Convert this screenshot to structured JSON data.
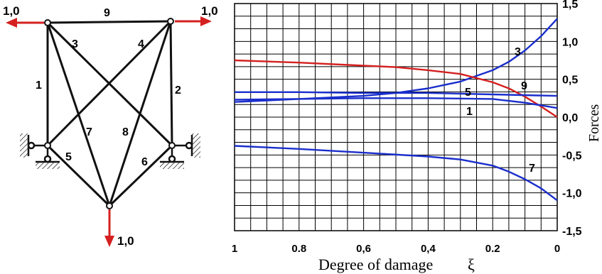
{
  "truss": {
    "load_labels": {
      "left": "1,0",
      "right": "1,0",
      "bottom": "1,0"
    },
    "member_labels": {
      "m1": "1",
      "m2": "2",
      "m3": "3",
      "m4": "4",
      "m5": "5",
      "m6": "6",
      "m7": "7",
      "m8": "8",
      "m9": "9"
    },
    "colors": {
      "load": "#d42020",
      "member": "#111111"
    }
  },
  "chart_data": {
    "type": "line",
    "xlabel": "Degree of damage",
    "xsymbol": "ξ",
    "ylabel": "Forces",
    "xlim": [
      1,
      0
    ],
    "ylim": [
      -1.5,
      1.5
    ],
    "x_ticks": [
      "1",
      "0.8",
      "0,6",
      "0,4",
      "0.2",
      "0"
    ],
    "y_ticks": [
      "1,5",
      "1,0",
      "0,5",
      "0,0",
      "-0,5",
      "-1,0",
      "-1,5"
    ],
    "grid": true,
    "series": [
      {
        "name": "3",
        "color": "#1a2ecc",
        "x": [
          1,
          0.8,
          0.6,
          0.5,
          0.4,
          0.3,
          0.2,
          0.15,
          0.1,
          0.05,
          0
        ],
        "y": [
          0.2,
          0.24,
          0.28,
          0.32,
          0.38,
          0.47,
          0.62,
          0.73,
          0.88,
          1.07,
          1.3
        ]
      },
      {
        "name": "9",
        "color": "#d42020",
        "x": [
          1,
          0.8,
          0.6,
          0.5,
          0.4,
          0.3,
          0.2,
          0.15,
          0.1,
          0.05,
          0
        ],
        "y": [
          0.75,
          0.72,
          0.68,
          0.66,
          0.62,
          0.57,
          0.46,
          0.38,
          0.27,
          0.14,
          0.0
        ]
      },
      {
        "name": "5",
        "color": "#1a2ecc",
        "x": [
          1,
          0.8,
          0.6,
          0.4,
          0.2,
          0
        ],
        "y": [
          0.33,
          0.33,
          0.32,
          0.32,
          0.3,
          0.28
        ]
      },
      {
        "name": "1",
        "color": "#1a2ecc",
        "x": [
          1,
          0.8,
          0.6,
          0.4,
          0.2,
          0.1,
          0
        ],
        "y": [
          0.23,
          0.24,
          0.25,
          0.25,
          0.24,
          0.19,
          0.12
        ]
      },
      {
        "name": "7",
        "color": "#1a2ecc",
        "x": [
          1,
          0.8,
          0.6,
          0.4,
          0.3,
          0.2,
          0.15,
          0.1,
          0.05,
          0
        ],
        "y": [
          -0.38,
          -0.42,
          -0.47,
          -0.52,
          -0.56,
          -0.64,
          -0.72,
          -0.82,
          -0.94,
          -1.1
        ]
      }
    ],
    "annotations": [
      "3",
      "9",
      "5",
      "1",
      "7"
    ]
  }
}
